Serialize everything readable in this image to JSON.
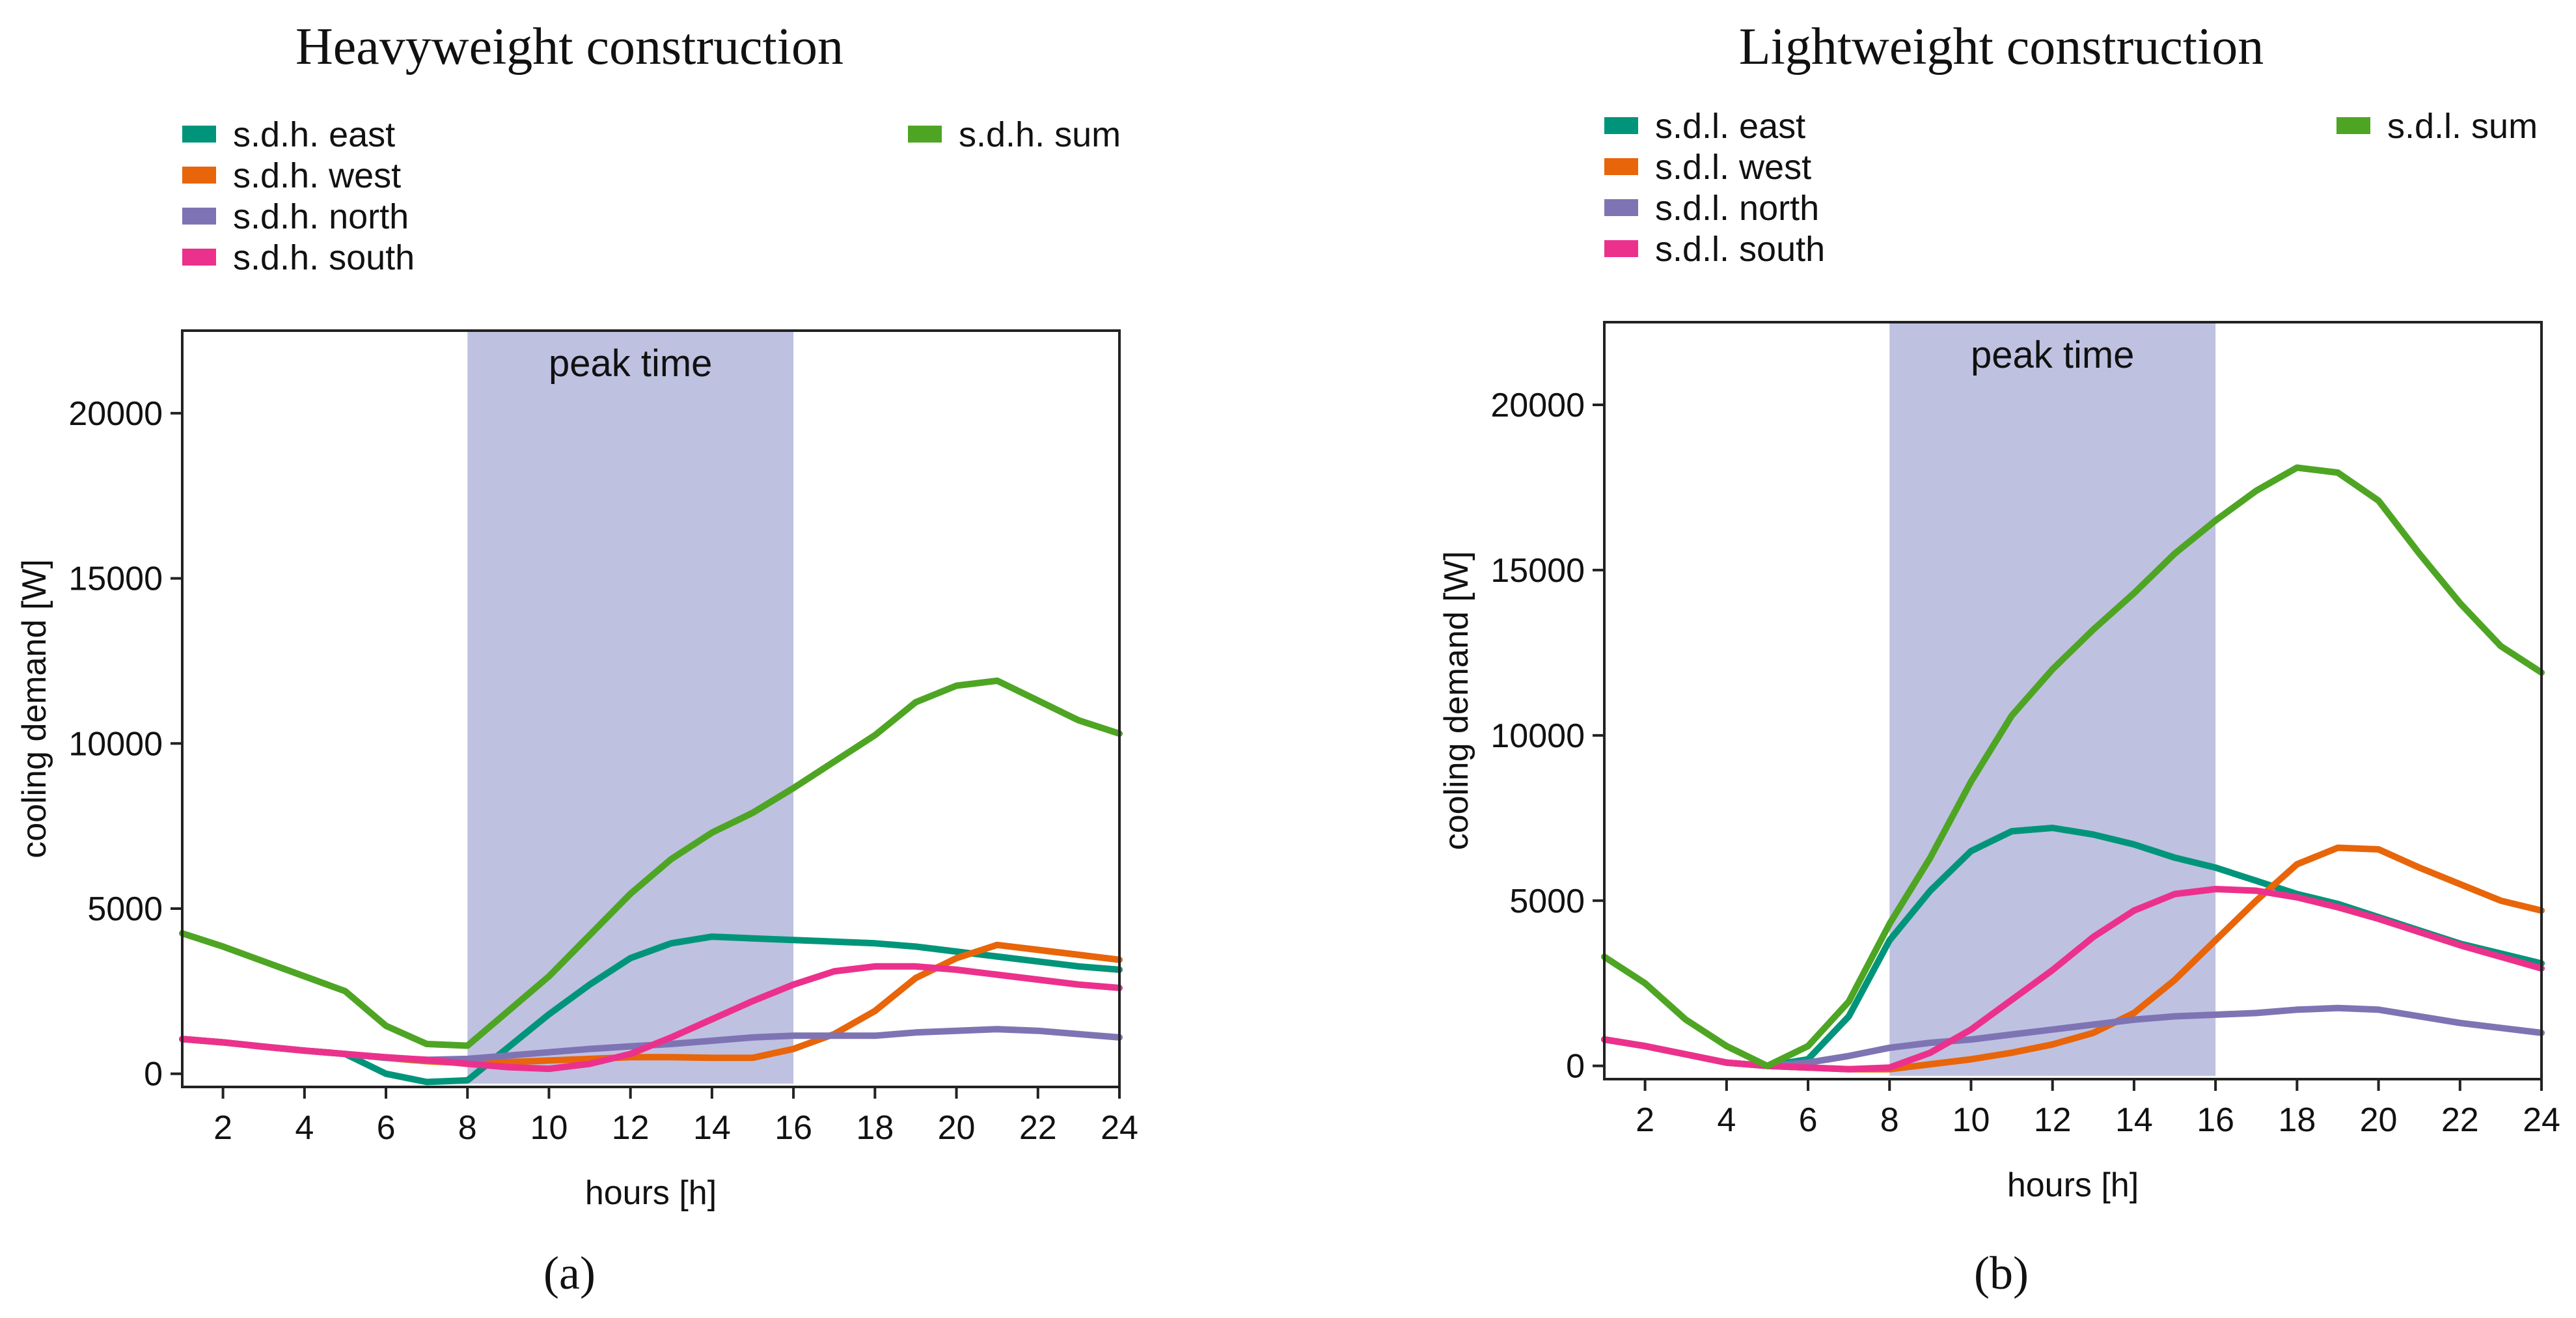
{
  "chart_data": [
    {
      "type": "line",
      "panel_label": "(a)",
      "title": "Heavyweight construction",
      "xlabel": "hours [h]",
      "ylabel": "cooling demand [W]",
      "xlim": [
        1,
        24
      ],
      "ylim": [
        -400,
        22500
      ],
      "xticks": [
        2,
        4,
        6,
        8,
        10,
        12,
        14,
        16,
        18,
        20,
        22,
        24
      ],
      "yticks": [
        0,
        5000,
        10000,
        15000,
        20000
      ],
      "annotation": {
        "label": "peak time",
        "x_start": 8,
        "x_end": 16
      },
      "x": [
        1,
        2,
        3,
        4,
        5,
        6,
        7,
        8,
        9,
        10,
        11,
        12,
        13,
        14,
        15,
        16,
        17,
        18,
        19,
        20,
        21,
        22,
        23,
        24
      ],
      "series": [
        {
          "name": "s.d.h. east",
          "color": "#00957a",
          "values": [
            1050,
            950,
            820,
            700,
            600,
            0,
            -250,
            -200,
            800,
            1800,
            2700,
            3500,
            3950,
            4150,
            4100,
            4050,
            4000,
            3950,
            3850,
            3700,
            3550,
            3400,
            3250,
            3150
          ]
        },
        {
          "name": "s.d.h. west",
          "color": "#e8650a",
          "values": [
            1050,
            950,
            820,
            700,
            600,
            480,
            380,
            320,
            350,
            400,
            450,
            500,
            500,
            480,
            480,
            750,
            1200,
            1900,
            2900,
            3500,
            3900,
            3750,
            3600,
            3450
          ]
        },
        {
          "name": "s.d.h. north",
          "color": "#7e74b4",
          "values": [
            1050,
            950,
            820,
            700,
            600,
            480,
            420,
            450,
            550,
            650,
            750,
            830,
            900,
            1000,
            1100,
            1150,
            1150,
            1150,
            1250,
            1300,
            1350,
            1300,
            1200,
            1100
          ]
        },
        {
          "name": "s.d.h. south",
          "color": "#ec318c",
          "values": [
            1050,
            950,
            820,
            700,
            600,
            500,
            420,
            300,
            200,
            150,
            300,
            600,
            1100,
            1650,
            2200,
            2700,
            3100,
            3250,
            3250,
            3150,
            3000,
            2850,
            2700,
            2600
          ]
        },
        {
          "name": "s.d.h. sum",
          "color": "#4ea523",
          "values": [
            4250,
            3850,
            3400,
            2950,
            2500,
            1450,
            900,
            850,
            1900,
            2950,
            4200,
            5450,
            6500,
            7300,
            7900,
            8650,
            9450,
            10250,
            11250,
            11750,
            11900,
            11300,
            10700,
            10300
          ]
        }
      ]
    },
    {
      "type": "line",
      "panel_label": "(b)",
      "title": "Lightweight construction",
      "xlabel": "hours [h]",
      "ylabel": "cooling demand [W]",
      "xlim": [
        1,
        24
      ],
      "ylim": [
        -400,
        22500
      ],
      "xticks": [
        2,
        4,
        6,
        8,
        10,
        12,
        14,
        16,
        18,
        20,
        22,
        24
      ],
      "yticks": [
        0,
        5000,
        10000,
        15000,
        20000
      ],
      "annotation": {
        "label": "peak time",
        "x_start": 8,
        "x_end": 16
      },
      "x": [
        1,
        2,
        3,
        4,
        5,
        6,
        7,
        8,
        9,
        10,
        11,
        12,
        13,
        14,
        15,
        16,
        17,
        18,
        19,
        20,
        21,
        22,
        23,
        24
      ],
      "series": [
        {
          "name": "s.d.l. east",
          "color": "#00957a",
          "values": [
            800,
            600,
            350,
            100,
            0,
            200,
            1500,
            3800,
            5300,
            6500,
            7100,
            7200,
            7000,
            6700,
            6300,
            6000,
            5600,
            5200,
            4900,
            4500,
            4100,
            3700,
            3400,
            3100
          ]
        },
        {
          "name": "s.d.l. west",
          "color": "#e8650a",
          "values": [
            800,
            600,
            350,
            100,
            0,
            -50,
            -100,
            -100,
            50,
            200,
            400,
            650,
            1000,
            1600,
            2600,
            3800,
            5000,
            6100,
            6600,
            6550,
            6000,
            5500,
            5000,
            4700
          ]
        },
        {
          "name": "s.d.l. north",
          "color": "#7e74b4",
          "values": [
            800,
            600,
            350,
            100,
            0,
            100,
            300,
            550,
            700,
            800,
            950,
            1100,
            1250,
            1400,
            1500,
            1550,
            1600,
            1700,
            1750,
            1700,
            1500,
            1300,
            1150,
            1000
          ]
        },
        {
          "name": "s.d.l. south",
          "color": "#ec318c",
          "values": [
            800,
            600,
            350,
            100,
            0,
            -50,
            -100,
            -50,
            400,
            1100,
            2000,
            2900,
            3900,
            4700,
            5200,
            5350,
            5300,
            5100,
            4800,
            4450,
            4050,
            3650,
            3300,
            2950
          ]
        },
        {
          "name": "s.d.l. sum",
          "color": "#4ea523",
          "values": [
            3300,
            2500,
            1400,
            600,
            0,
            600,
            1950,
            4300,
            6300,
            8600,
            10600,
            12000,
            13200,
            14300,
            15500,
            16500,
            17400,
            18100,
            17950,
            17100,
            15500,
            14000,
            12700,
            11900
          ]
        }
      ]
    }
  ]
}
